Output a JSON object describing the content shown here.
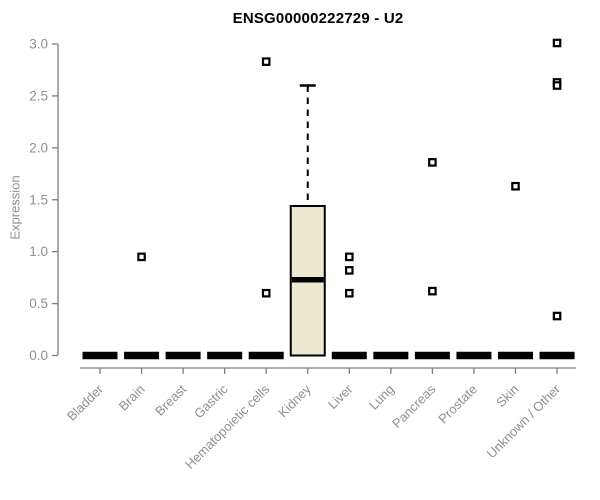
{
  "chart_data": {
    "type": "boxplot",
    "title": "ENSG00000222729 - U2",
    "ylabel": "Expression",
    "xlabel": "",
    "ylim": [
      0.0,
      3.0
    ],
    "yticks": [
      0.0,
      0.5,
      1.0,
      1.5,
      2.0,
      2.5,
      3.0
    ],
    "grid": false,
    "legend": null,
    "categories": [
      "Bladder",
      "Brain",
      "Breast",
      "Gastric",
      "Hematopoietic cells",
      "Kidney",
      "Liver",
      "Lung",
      "Pancreas",
      "Prostate",
      "Skin",
      "Unknown / Other"
    ],
    "boxes": [
      {
        "category": "Bladder",
        "q1": 0.0,
        "median": 0.0,
        "q3": 0.0,
        "whisker_low": 0.0,
        "whisker_high": 0.0,
        "outliers": []
      },
      {
        "category": "Brain",
        "q1": 0.0,
        "median": 0.0,
        "q3": 0.0,
        "whisker_low": 0.0,
        "whisker_high": 0.0,
        "outliers": [
          0.95
        ]
      },
      {
        "category": "Breast",
        "q1": 0.0,
        "median": 0.0,
        "q3": 0.0,
        "whisker_low": 0.0,
        "whisker_high": 0.0,
        "outliers": []
      },
      {
        "category": "Gastric",
        "q1": 0.0,
        "median": 0.0,
        "q3": 0.0,
        "whisker_low": 0.0,
        "whisker_high": 0.0,
        "outliers": []
      },
      {
        "category": "Hematopoietic cells",
        "q1": 0.0,
        "median": 0.0,
        "q3": 0.0,
        "whisker_low": 0.0,
        "whisker_high": 0.0,
        "outliers": [
          2.83,
          0.6
        ]
      },
      {
        "category": "Kidney",
        "q1": 0.0,
        "median": 0.73,
        "q3": 1.44,
        "whisker_low": 0.0,
        "whisker_high": 2.6,
        "outliers": []
      },
      {
        "category": "Liver",
        "q1": 0.0,
        "median": 0.0,
        "q3": 0.0,
        "whisker_low": 0.0,
        "whisker_high": 0.0,
        "outliers": [
          0.95,
          0.82,
          0.6
        ]
      },
      {
        "category": "Lung",
        "q1": 0.0,
        "median": 0.0,
        "q3": 0.0,
        "whisker_low": 0.0,
        "whisker_high": 0.0,
        "outliers": []
      },
      {
        "category": "Pancreas",
        "q1": 0.0,
        "median": 0.0,
        "q3": 0.0,
        "whisker_low": 0.0,
        "whisker_high": 0.0,
        "outliers": [
          1.86,
          0.62
        ]
      },
      {
        "category": "Prostate",
        "q1": 0.0,
        "median": 0.0,
        "q3": 0.0,
        "whisker_low": 0.0,
        "whisker_high": 0.0,
        "outliers": []
      },
      {
        "category": "Skin",
        "q1": 0.0,
        "median": 0.0,
        "q3": 0.0,
        "whisker_low": 0.0,
        "whisker_high": 0.0,
        "outliers": [
          1.63
        ]
      },
      {
        "category": "Unknown / Other",
        "q1": 0.0,
        "median": 0.0,
        "q3": 0.0,
        "whisker_low": 0.0,
        "whisker_high": 0.0,
        "outliers": [
          3.01,
          2.63,
          2.6,
          0.38
        ]
      }
    ],
    "colors": {
      "box_fill": "#ede8d0",
      "box_stroke": "#000000",
      "median": "#000000",
      "outlier_stroke": "#000000",
      "outlier_fill": "#ffffff",
      "axis": "#7d7d7d",
      "tick_label": "#8f8f8f",
      "title": "#000000",
      "background": "#ffffff"
    }
  }
}
